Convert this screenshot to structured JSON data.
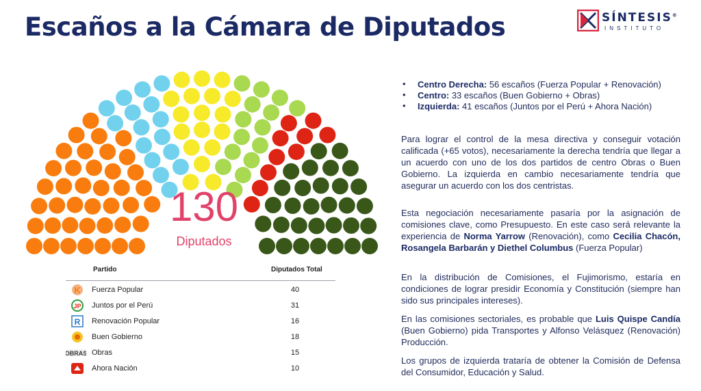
{
  "title": "Escaños a la Cámara de Diputados",
  "logo": {
    "name": "SÍNTESIS",
    "registered": "®",
    "sub": "INSTITUTO",
    "colors": [
      "#d7263d",
      "#1b2a64"
    ]
  },
  "hemicycle": {
    "total": "130",
    "label": "Diputados",
    "seat_groups": [
      {
        "count": 40,
        "color": "#f97d0e"
      },
      {
        "count": 16,
        "color": "#72d2ee"
      },
      {
        "count": 18,
        "color": "#f7ea2a"
      },
      {
        "count": 15,
        "color": "#a9d851"
      },
      {
        "count": 10,
        "color": "#de2414"
      },
      {
        "count": 31,
        "color": "#395719"
      }
    ]
  },
  "table": {
    "header_party": "Partido",
    "header_total": "Diputados Total",
    "rows": [
      {
        "icon": "fuerza-popular-logo-icon",
        "name": "Fuerza Popular",
        "value": "40"
      },
      {
        "icon": "juntos-por-el-peru-logo-icon",
        "name": "Juntos por el Perú",
        "value": "31"
      },
      {
        "icon": "renovacion-popular-logo-icon",
        "name": "Renovación Popular",
        "value": "16"
      },
      {
        "icon": "buen-gobierno-logo-icon",
        "name": "Buen Gobierno",
        "value": "18"
      },
      {
        "icon": "obras-logo-icon",
        "name": "Obras",
        "value": "15"
      },
      {
        "icon": "ahora-nacion-logo-icon",
        "name": "Ahora Nación",
        "value": "10"
      }
    ]
  },
  "bullets": [
    {
      "label": "Centro Derecha:",
      "text": " 56 escaños (Fuerza Popular + Renovación)"
    },
    {
      "label": "Centro:",
      "text": " 33 escaños (Buen Gobierno  + Obras)"
    },
    {
      "label": "Izquierda:",
      "text": " 41 escaños (Juntos por el Perú + Ahora Nación)"
    }
  ],
  "para1": "Para lograr el control de la mesa directiva y conseguir votación calificada (+65 votos), necesariamente la derecha tendría que llegar a un acuerdo con uno de los dos partidos de centro Obras o Buen Gobierno. La izquierda en cambio necesariamente tendría que asegurar un acuerdo con los dos centristas.",
  "para2": {
    "t1": "Esta negociación necesariamente pasaría por la asignación de comisiones clave, como Presupuesto. En este caso será relevante la experiencia de ",
    "b1": "Norma Yarrow",
    "t2": " (Renovación), como ",
    "b2": "Cecilia Chacón, Rosangela Barbarán y Diethel Columbus",
    "t3": " (Fuerza Popular)"
  },
  "para3": "En la distribución de Comisiones, el Fujimorismo, estaría en condiciones de lograr presidir Economía y Constitución (siempre han sido sus principales intereses).",
  "para4": {
    "t1": "En las comisiones sectoriales, es probable que ",
    "b1": "Luis Quispe Candía",
    "t2": " (Buen Gobierno) pida Transportes y Alfonso Velásquez (Renovación) Producción."
  },
  "para5": "Los grupos de izquierda trataría de obtener la Comisión de Defensa del Consumidor, Educación y Salud."
}
